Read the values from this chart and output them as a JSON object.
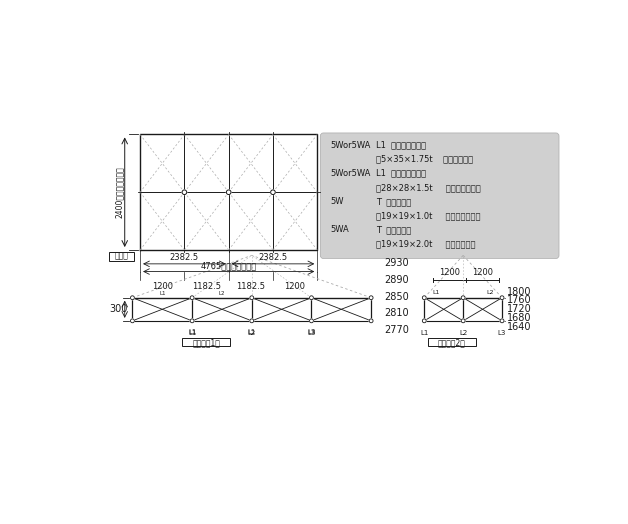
{
  "bg_color": "#ffffff",
  "line_color": "#1a1a1a",
  "dashed_color": "#aaaaaa",
  "box_bg": "#d0d0d0",
  "info_lines": [
    [
      "5Wor5WA",
      "L1  アウターレッグ"
    ],
    [
      "",
      "〃5×35×1.75t    材質：アルミ"
    ],
    [
      "5Wor5WA",
      "L1  インナーレッグ"
    ],
    [
      "",
      "〃28×28×1.5t     材質：スチール"
    ],
    [
      "5W",
      "T  トラスバー"
    ],
    [
      "",
      "〃19×19×1.0t     材質：スチール"
    ],
    [
      "5WA",
      "T  トラスバー"
    ],
    [
      "",
      "〃19×19×2.0t     材質：アルミ"
    ]
  ],
  "center_heights": [
    "2930",
    "2890",
    "2850",
    "2810",
    "2770"
  ],
  "right_heights": [
    "1800",
    "1760",
    "1720",
    "1680",
    "1640"
  ],
  "seg_labels": [
    "1200",
    "1182.5",
    "1182.5",
    "1200"
  ]
}
